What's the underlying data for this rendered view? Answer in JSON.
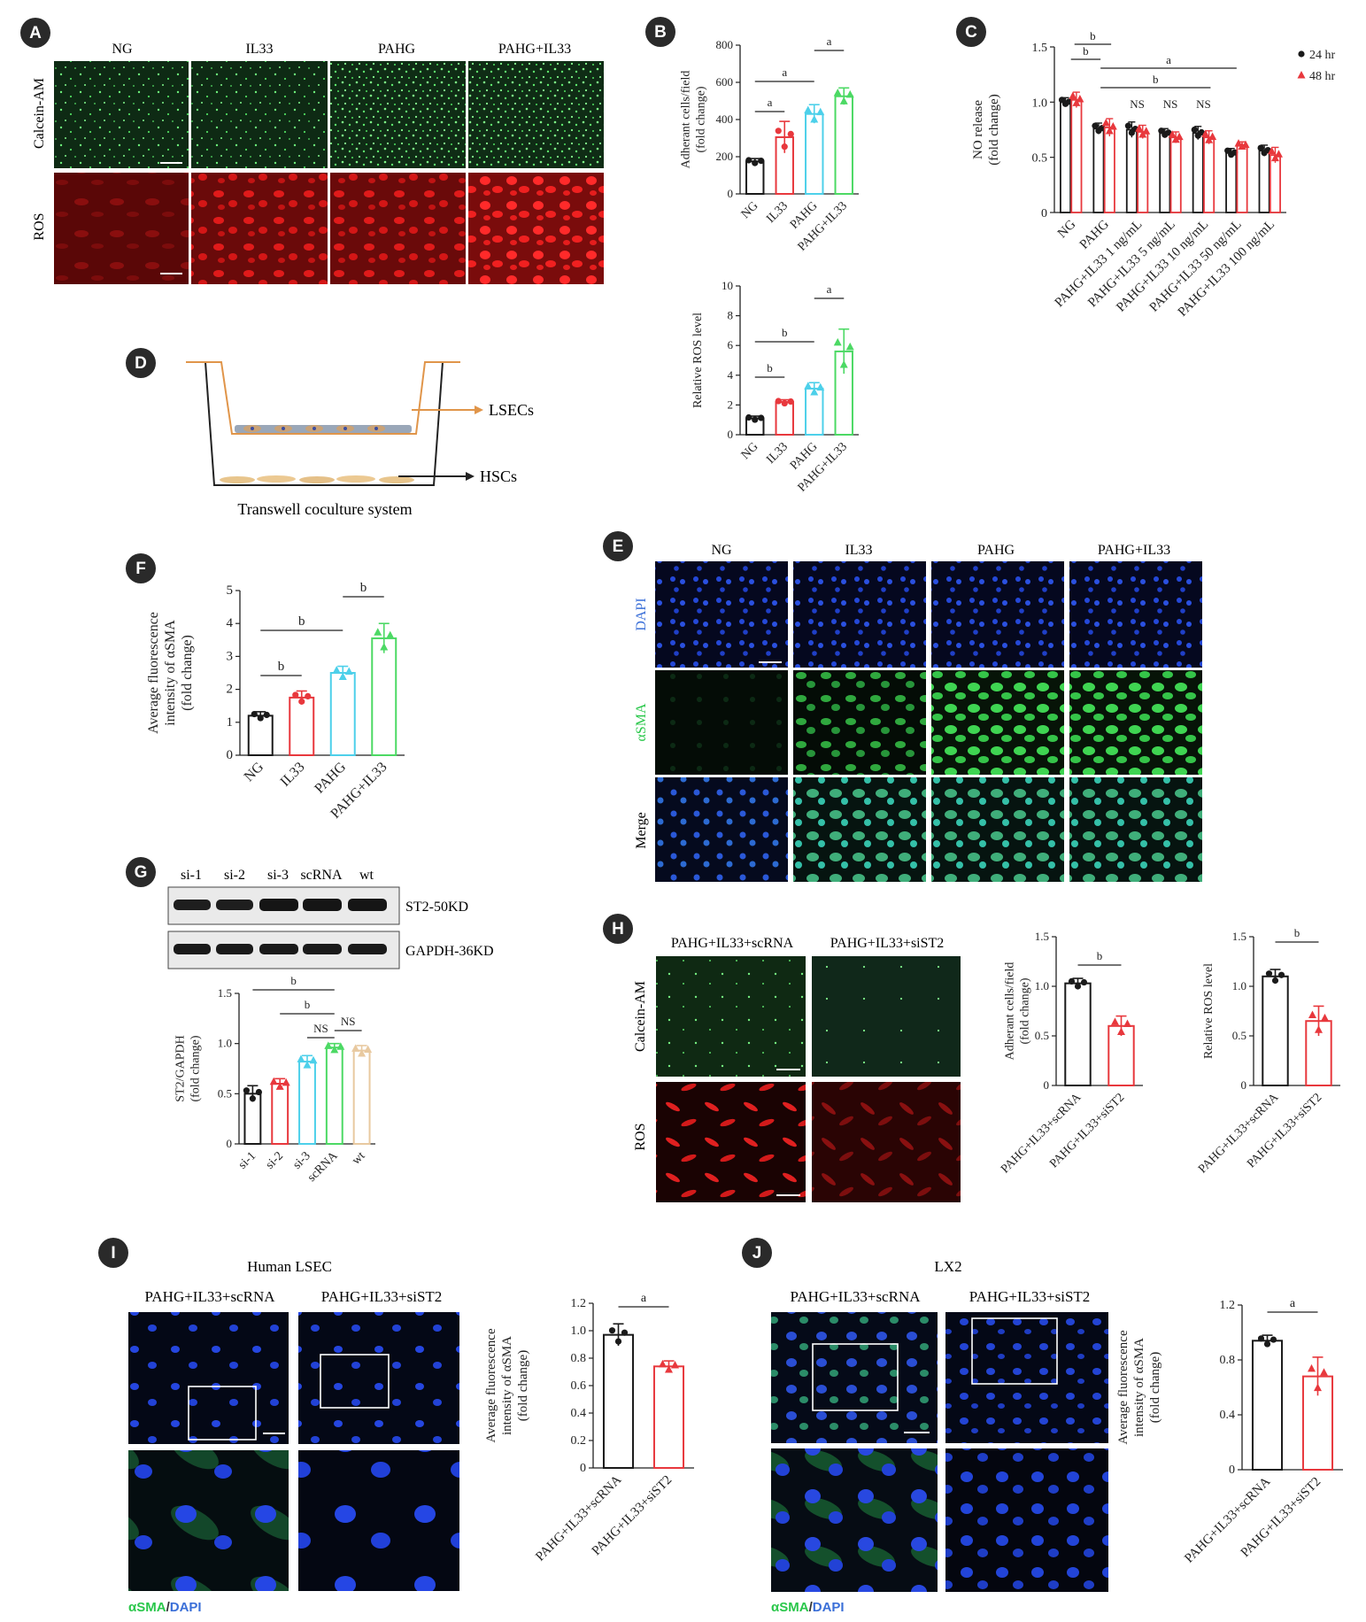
{
  "panel_letters": [
    "A",
    "B",
    "C",
    "D",
    "E",
    "F",
    "G",
    "H",
    "I",
    "J"
  ],
  "panelA": {
    "columns": [
      "NG",
      "IL33",
      "PAHG",
      "PAHG+IL33"
    ],
    "rows": [
      "Calcein-AM",
      "ROS"
    ]
  },
  "panelD": {
    "labels": {
      "lsecs": "LSECs",
      "hscs": "HSCs",
      "caption": "Transwell coculture system"
    }
  },
  "panelE": {
    "columns": [
      "NG",
      "IL33",
      "PAHG",
      "PAHG+IL33"
    ],
    "rows": [
      "DAPI",
      "αSMA",
      "Merge"
    ]
  },
  "panelG": {
    "lanes": [
      "si-1",
      "si-2",
      "si-3",
      "scRNA",
      "wt"
    ],
    "bands": [
      "ST2-50KD",
      "GAPDH-36KD"
    ]
  },
  "panelH": {
    "columns": [
      "PAHG+IL33+scRNA",
      "PAHG+IL33+siST2"
    ],
    "rows": [
      "Calcein-AM",
      "ROS"
    ]
  },
  "panelI": {
    "title": "Human LSEC",
    "columns": [
      "PAHG+IL33+scRNA",
      "PAHG+IL33+siST2"
    ],
    "stain_legend": [
      "αSMA",
      "/",
      "DAPI"
    ]
  },
  "panelJ": {
    "title": "LX2",
    "columns": [
      "PAHG+IL33+scRNA",
      "PAHG+IL33+siST2"
    ],
    "stain_legend": [
      "αSMA",
      "/",
      "DAPI"
    ]
  },
  "colors": {
    "black": "#1a1a1a",
    "red": "#e8383d",
    "cyan": "#4dd0ea",
    "green": "#4cd964",
    "tan": "#e8c9a0",
    "orange": "#e0954a",
    "green_stain": "#29c74a",
    "blue_stain": "#3a6fd8"
  },
  "chart_data": [
    {
      "id": "B1",
      "type": "bar",
      "categories": [
        "NG",
        "IL33",
        "PAHG",
        "PAHG+IL33"
      ],
      "values": [
        175,
        305,
        430,
        525
      ],
      "errors": [
        15,
        85,
        50,
        45
      ],
      "ylabel": "Adherant cells/field (fold change)",
      "ylim": [
        0,
        800
      ],
      "yticks": [
        0,
        200,
        400,
        600,
        800
      ],
      "significance": [
        {
          "from": 0,
          "to": 1,
          "label": "a"
        },
        {
          "from": 0,
          "to": 2,
          "label": "a"
        },
        {
          "from": 2,
          "to": 3,
          "label": "a"
        }
      ]
    },
    {
      "id": "B2",
      "type": "bar",
      "categories": [
        "NG",
        "IL33",
        "PAHG",
        "PAHG+IL33"
      ],
      "values": [
        1.1,
        2.2,
        3.1,
        5.6
      ],
      "errors": [
        0.15,
        0.15,
        0.4,
        1.5
      ],
      "ylabel": "Relative ROS level",
      "ylim": [
        0,
        10
      ],
      "yticks": [
        0,
        2,
        4,
        6,
        8,
        10
      ],
      "significance": [
        {
          "from": 0,
          "to": 1,
          "label": "b"
        },
        {
          "from": 0,
          "to": 2,
          "label": "b"
        },
        {
          "from": 2,
          "to": 3,
          "label": "a"
        }
      ]
    },
    {
      "id": "C",
      "type": "bar",
      "categories": [
        "NG",
        "PAHG",
        "PAHG+IL33 1 ng/mL",
        "PAHG+IL33 5 ng/mL",
        "PAHG+IL33 10 ng/mL",
        "PAHG+IL33 50 ng/mL",
        "PAHG+IL33 100 ng/mL"
      ],
      "series": [
        {
          "name": "24 hr",
          "values": [
            1.0,
            0.76,
            0.75,
            0.72,
            0.72,
            0.54,
            0.56
          ],
          "errors": [
            0.04,
            0.05,
            0.07,
            0.04,
            0.06,
            0.04,
            0.05
          ]
        },
        {
          "name": "48 hr",
          "values": [
            1.02,
            0.77,
            0.73,
            0.68,
            0.68,
            0.61,
            0.52
          ],
          "errors": [
            0.07,
            0.08,
            0.06,
            0.05,
            0.06,
            0.03,
            0.07
          ]
        }
      ],
      "ylabel": "NO release (fold change)",
      "ylim": [
        0,
        1.5
      ],
      "yticks": [
        "0",
        "0.5",
        "1.0",
        "1.5"
      ],
      "legend": "top-right",
      "significance": [
        {
          "from": 0,
          "to": 1,
          "label": "b"
        },
        {
          "from": 0,
          "to": 1,
          "label": "b"
        },
        {
          "from": 1,
          "to": 5,
          "label": "a"
        },
        {
          "from": 1,
          "to": 4,
          "label": "b"
        },
        {
          "at": 2,
          "label": "NS"
        },
        {
          "at": 3,
          "label": "NS"
        },
        {
          "at": 4,
          "label": "NS"
        }
      ]
    },
    {
      "id": "F",
      "type": "bar",
      "categories": [
        "NG",
        "IL33",
        "PAHG",
        "PAHG+IL33"
      ],
      "values": [
        1.2,
        1.75,
        2.5,
        3.55
      ],
      "errors": [
        0.12,
        0.2,
        0.2,
        0.45
      ],
      "ylabel": "Average fluorescence intensity of αSMA (fold change)",
      "ylim": [
        0,
        5
      ],
      "yticks": [
        0,
        1,
        2,
        3,
        4,
        5
      ],
      "significance": [
        {
          "from": 0,
          "to": 1,
          "label": "b"
        },
        {
          "from": 0,
          "to": 2,
          "label": "b"
        },
        {
          "from": 2,
          "to": 3,
          "label": "b"
        }
      ]
    },
    {
      "id": "G",
      "type": "bar",
      "categories": [
        "si-1",
        "si-2",
        "si-3",
        "scRNA",
        "wt"
      ],
      "values": [
        0.5,
        0.6,
        0.82,
        0.96,
        0.93
      ],
      "errors": [
        0.08,
        0.05,
        0.06,
        0.04,
        0.05
      ],
      "ylabel": "ST2/GAPDH (fold change)",
      "ylim": [
        0,
        1.5
      ],
      "yticks": [
        "0",
        "0.5",
        "1.0",
        "1.5"
      ],
      "significance": [
        {
          "from": 0,
          "to": 3,
          "label": "b"
        },
        {
          "from": 1,
          "to": 3,
          "label": "b"
        },
        {
          "from": 2,
          "to": 3,
          "label": "NS"
        },
        {
          "from": 3,
          "to": 4,
          "label": "NS"
        }
      ]
    },
    {
      "id": "H1",
      "type": "bar",
      "categories": [
        "PAHG+IL33+scRNA",
        "PAHG+IL33+siST2"
      ],
      "values": [
        1.03,
        0.6
      ],
      "errors": [
        0.05,
        0.1
      ],
      "ylabel": "Adherant cells/field (fold change)",
      "ylim": [
        0,
        1.5
      ],
      "yticks": [
        "0",
        "0.5",
        "1.0",
        "1.5"
      ],
      "significance": [
        {
          "from": 0,
          "to": 1,
          "label": "b"
        }
      ]
    },
    {
      "id": "H2",
      "type": "bar",
      "categories": [
        "PAHG+IL33+scRNA",
        "PAHG+IL33+siST2"
      ],
      "values": [
        1.1,
        0.65
      ],
      "errors": [
        0.07,
        0.15
      ],
      "ylabel": "Relative ROS level",
      "ylim": [
        0,
        1.5
      ],
      "yticks": [
        "0",
        "0.5",
        "1.0",
        "1.5"
      ],
      "significance": [
        {
          "from": 0,
          "to": 1,
          "label": "b"
        }
      ]
    },
    {
      "id": "I",
      "type": "bar",
      "categories": [
        "PAHG+IL33+scRNA",
        "PAHG+IL33+siST2"
      ],
      "values": [
        0.97,
        0.74
      ],
      "errors": [
        0.08,
        0.04
      ],
      "ylabel": "Average fluorescence intensity of αSMA (fold change)",
      "ylim": [
        0,
        1.2
      ],
      "yticks": [
        "0",
        "0.2",
        "0.4",
        "0.6",
        "0.8",
        "1.0",
        "1.2"
      ],
      "significance": [
        {
          "from": 0,
          "to": 1,
          "label": "a"
        }
      ]
    },
    {
      "id": "J",
      "type": "bar",
      "categories": [
        "PAHG+IL33+scRNA",
        "PAHG+IL33+siST2"
      ],
      "values": [
        0.94,
        0.68
      ],
      "errors": [
        0.04,
        0.14
      ],
      "ylabel": "Average fluorescence intensity of αSMA (fold change)",
      "ylim": [
        0,
        1.2
      ],
      "yticks": [
        "0",
        "0.4",
        "0.8",
        "1.2"
      ],
      "significance": [
        {
          "from": 0,
          "to": 1,
          "label": "a"
        }
      ]
    }
  ]
}
